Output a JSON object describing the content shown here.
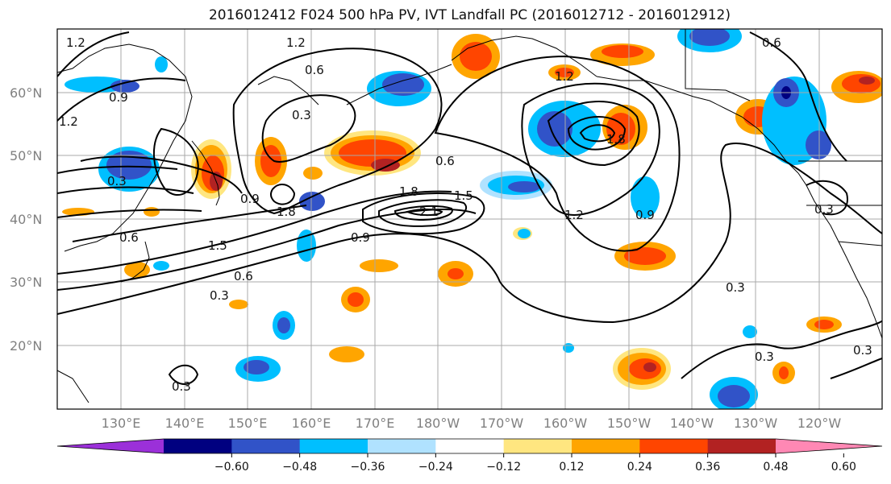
{
  "title": "2016012412 F024 500 hPa PV, IVT Landfall PC (2016012712 - 2016012912)",
  "lat_labels": [
    "60°N",
    "50°N",
    "40°N",
    "30°N",
    "20°N"
  ],
  "lon_labels": [
    "130°E",
    "140°E",
    "150°E",
    "160°E",
    "170°E",
    "180°W",
    "170°W",
    "160°W",
    "150°W",
    "140°W",
    "130°W",
    "120°W"
  ],
  "colorbar": {
    "ticks": [
      "−0.60",
      "−0.48",
      "−0.36",
      "−0.24",
      "−0.12",
      "0.12",
      "0.24",
      "0.36",
      "0.48",
      "0.60"
    ],
    "colors": [
      "#9b30d9",
      "#000080",
      "#3153c8",
      "#00bfff",
      "#b0e2ff",
      "#ffffff",
      "#ffe680",
      "#ffa500",
      "#ff4500",
      "#b22222",
      "#ff88b4"
    ]
  },
  "contour_labels": [
    "1.2",
    "0.6",
    "0.3",
    "0.9",
    "1.2",
    "0.3",
    "0.6",
    "1.2",
    "1.8",
    "1.8",
    "2.1",
    "1.5",
    "0.9",
    "0.6",
    "1.5",
    "0.3",
    "0.6",
    "0.9",
    "1.2",
    "0.9",
    "0.3",
    "0.3",
    "0.3",
    "0.3",
    "0.3",
    "0.6",
    "1.8",
    "1.2"
  ]
}
